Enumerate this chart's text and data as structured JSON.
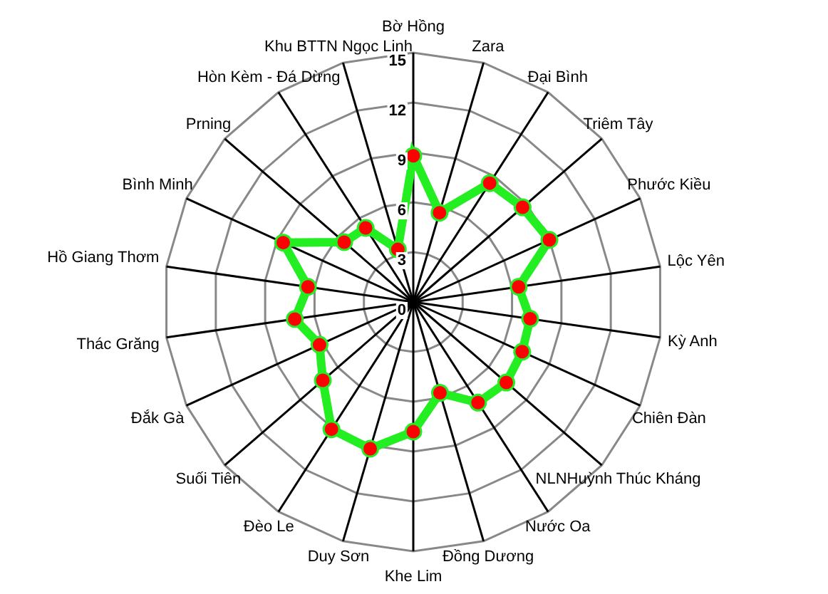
{
  "chart_data": {
    "type": "radar",
    "categories": [
      "Bờ Hồng",
      "Zara",
      "Đại Bình",
      "Triêm Tây",
      "Phước Kiều",
      "Lộc Yên",
      "Kỳ Anh",
      "Chiên Đàn",
      "NLNHuỳnh Thúc Kháng",
      "Nước Oa",
      "Đồng Dương",
      "Khe Lim",
      "Duy Sơn",
      "Đèo Le",
      "Suối Tiên",
      "Đắk Gà",
      "Thác Grăng",
      "Hồ Giang Thơm",
      "Bình Minh",
      "Prning",
      "Hòn Kèm - Đá Dừng",
      "Khu BTTN Ngọc Linh"
    ],
    "series": [
      {
        "color": "#22ee22",
        "values": [
          8.8,
          5.6,
          8.5,
          8.7,
          9.0,
          6.4,
          7.1,
          7.2,
          7.4,
          7.2,
          5.7,
          7.8,
          9.2,
          9.1,
          7.2,
          6.2,
          7.2,
          6.4,
          8.6,
          5.5,
          5.3,
          3.3
        ]
      }
    ],
    "ylim": [
      0,
      15
    ],
    "yticks": [
      0,
      3,
      6,
      9,
      12,
      15
    ],
    "grid": true,
    "marker": "circle",
    "legend": false
  }
}
